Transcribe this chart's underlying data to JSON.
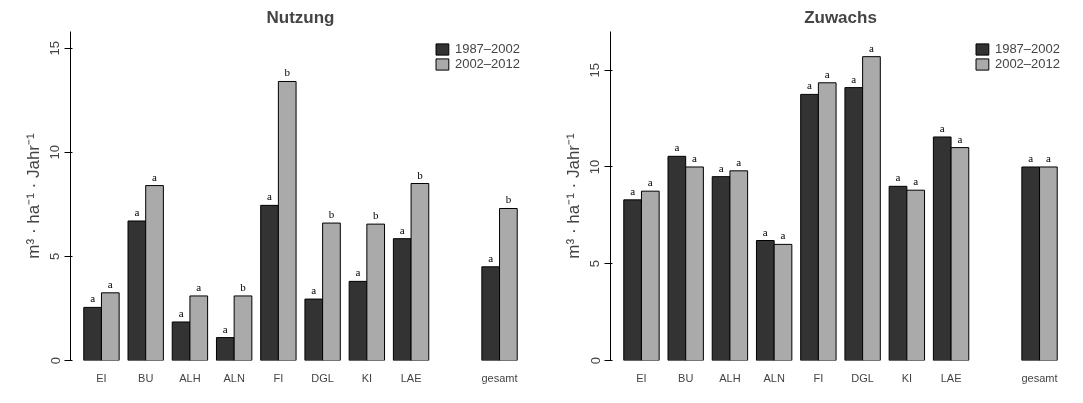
{
  "chart_data": [
    {
      "type": "bar",
      "title": "Nutzung",
      "ylabel": "m³ · ha⁻¹ · Jahr⁻¹",
      "categories": [
        "EI",
        "BU",
        "ALH",
        "ALN",
        "FI",
        "DGL",
        "KI",
        "LAE",
        null,
        "gesamt"
      ],
      "ylim": [
        0,
        15.8
      ],
      "yticks": [
        0,
        5,
        10,
        15
      ],
      "grid": false,
      "legend": "top right",
      "series": [
        {
          "name": "1987–2002",
          "color": "#333333",
          "values": [
            2.55,
            6.7,
            1.85,
            1.1,
            7.45,
            2.95,
            3.8,
            5.85,
            null,
            4.5
          ],
          "value_labels": [
            "a",
            "a",
            "a",
            "a",
            "a",
            "a",
            "a",
            "a",
            null,
            "a"
          ]
        },
        {
          "name": "2002–2012",
          "color": "#aaaaaa",
          "values": [
            3.25,
            8.4,
            3.1,
            3.1,
            13.4,
            6.6,
            6.55,
            8.5,
            null,
            7.3
          ],
          "value_labels": [
            "a",
            "a",
            "a",
            "b",
            "b",
            "b",
            "b",
            "b",
            null,
            "b"
          ]
        }
      ]
    },
    {
      "type": "bar",
      "title": "Zuwachs",
      "ylabel": "m³ · ha⁻¹ · Jahr⁻¹",
      "categories": [
        "EI",
        "BU",
        "ALH",
        "ALN",
        "FI",
        "DGL",
        "KI",
        "LAE",
        null,
        "gesamt"
      ],
      "ylim": [
        0,
        17
      ],
      "yticks": [
        0,
        5,
        10,
        15
      ],
      "grid": false,
      "legend": "top right",
      "series": [
        {
          "name": "1987–2002",
          "color": "#333333",
          "values": [
            8.3,
            10.55,
            9.5,
            6.2,
            13.75,
            14.1,
            9.0,
            11.55,
            null,
            10.0
          ],
          "value_labels": [
            "a",
            "a",
            "a",
            "a",
            "a",
            "a",
            "a",
            "a",
            null,
            "a"
          ]
        },
        {
          "name": "2002–2012",
          "color": "#aaaaaa",
          "values": [
            8.75,
            10.0,
            9.8,
            6.0,
            14.35,
            15.7,
            8.8,
            11.0,
            null,
            10.0
          ],
          "value_labels": [
            "a",
            "a",
            "a",
            "a",
            "a",
            "a",
            "a",
            "a",
            null,
            "a"
          ]
        }
      ]
    }
  ]
}
